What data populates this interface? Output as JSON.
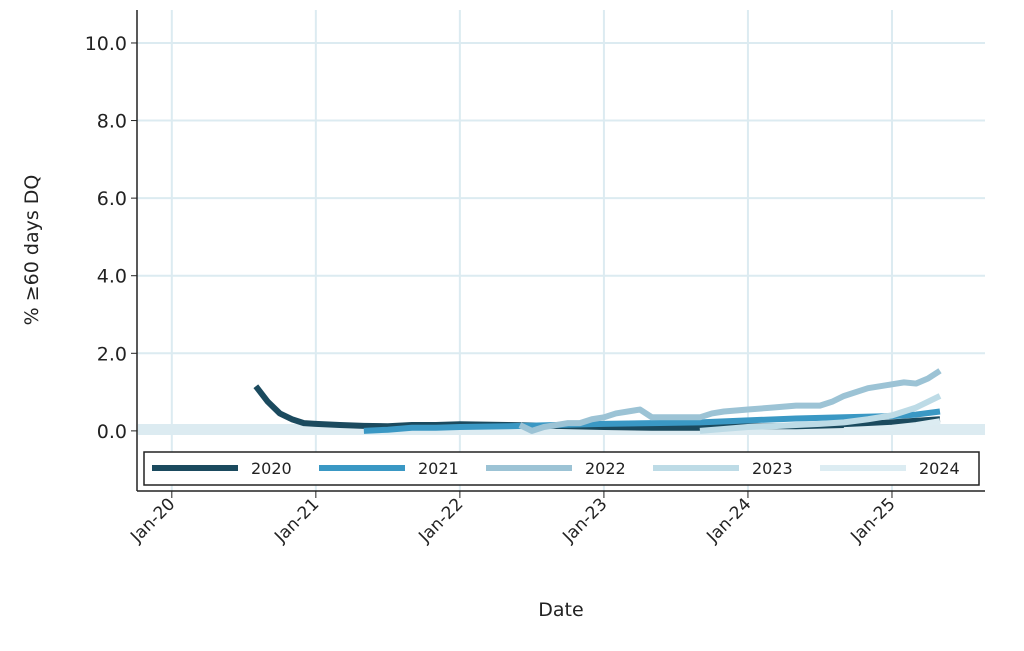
{
  "chart_data": {
    "type": "line",
    "title": "",
    "xlabel": "Date",
    "ylabel": "% ≥60 days DQ",
    "ylim": [
      -1.55,
      10.85
    ],
    "yticks": [
      0,
      2,
      4,
      6,
      8,
      10
    ],
    "ytick_labels": [
      "0.0",
      "2.0",
      "4.0",
      "6.0",
      "8.0",
      "10.0"
    ],
    "x_unit": "months since Jan-2020",
    "xlim": [
      -2.9,
      67.75
    ],
    "xticks": [
      0,
      12,
      24,
      36,
      48,
      60
    ],
    "xtick_labels": [
      "Jan-20",
      "Jan-21",
      "Jan-22",
      "Jan-23",
      "Jan-24",
      "Jan-25"
    ],
    "grid": true,
    "legend_position": "bottom-inside",
    "series": [
      {
        "name": "2020",
        "color": "#1b4a5e",
        "x": [
          7,
          8,
          9,
          10,
          11,
          12,
          14,
          16,
          18,
          20,
          22,
          24,
          28,
          32,
          36,
          40,
          44,
          48,
          52,
          56,
          60,
          64
        ],
        "y": [
          1.15,
          0.75,
          0.45,
          0.3,
          0.2,
          0.18,
          0.15,
          0.13,
          0.12,
          0.15,
          0.15,
          0.17,
          0.15,
          0.13,
          0.1,
          0.08,
          0.08,
          0.12,
          0.12,
          0.15,
          0.22,
          0.3
        ]
      },
      {
        "name": "2021",
        "color": "#3a98c4",
        "x": [
          16,
          18,
          20,
          22,
          24,
          28,
          32,
          36,
          40,
          44,
          48,
          52,
          56,
          60,
          62,
          64
        ],
        "y": [
          0.0,
          0.03,
          0.08,
          0.08,
          0.1,
          0.12,
          0.15,
          0.18,
          0.2,
          0.22,
          0.27,
          0.32,
          0.35,
          0.38,
          0.42,
          0.5
        ]
      },
      {
        "name": "2022",
        "color": "#9cc3d5",
        "x": [
          29,
          30,
          31,
          32,
          33,
          34,
          35,
          36,
          37,
          38,
          39,
          40,
          42,
          44,
          45,
          46,
          48,
          50,
          52,
          54,
          55,
          56,
          58,
          60,
          61,
          62,
          63,
          64
        ],
        "y": [
          0.15,
          0.0,
          0.1,
          0.15,
          0.2,
          0.2,
          0.3,
          0.35,
          0.45,
          0.5,
          0.55,
          0.35,
          0.35,
          0.35,
          0.45,
          0.5,
          0.55,
          0.6,
          0.65,
          0.65,
          0.75,
          0.9,
          1.1,
          1.2,
          1.25,
          1.22,
          1.35,
          1.55
        ]
      },
      {
        "name": "2023",
        "color": "#bddbe6",
        "x": [
          44,
          46,
          48,
          50,
          52,
          54,
          56,
          58,
          60,
          62,
          64
        ],
        "y": [
          0.0,
          0.05,
          0.1,
          0.12,
          0.15,
          0.18,
          0.22,
          0.3,
          0.4,
          0.6,
          0.9
        ]
      },
      {
        "name": "2024",
        "color": "#dcecf2",
        "x": [
          56,
          58,
          60,
          62,
          64
        ],
        "y": [
          0.02,
          0.05,
          0.08,
          0.15,
          0.25
        ]
      }
    ]
  }
}
